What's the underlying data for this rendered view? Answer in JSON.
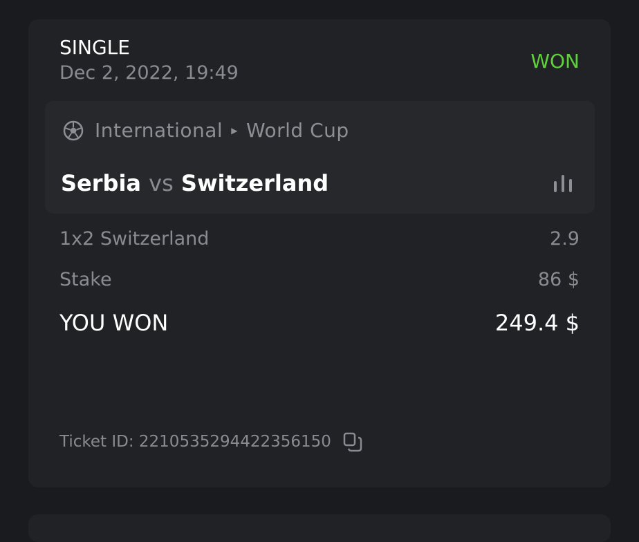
{
  "bet": {
    "type": "SINGLE",
    "date": "Dec 2, 2022, 19:49",
    "status": "WON",
    "status_color": "#5fd13a",
    "event": {
      "sport_icon": "soccer-ball-icon",
      "category": "International",
      "tournament": "World Cup",
      "home": "Serbia",
      "vs": "vs",
      "away": "Switzerland",
      "stats_icon": "bar-chart-icon"
    },
    "selection": {
      "label": "1x2 Switzerland",
      "value": "2.9"
    },
    "stake": {
      "label": "Stake",
      "value": "86 $"
    },
    "payout": {
      "label": "YOU WON",
      "value": "249.4 $"
    },
    "ticket": {
      "label": "Ticket ID: 2210535294422356150",
      "copy_icon": "copy-icon"
    }
  }
}
